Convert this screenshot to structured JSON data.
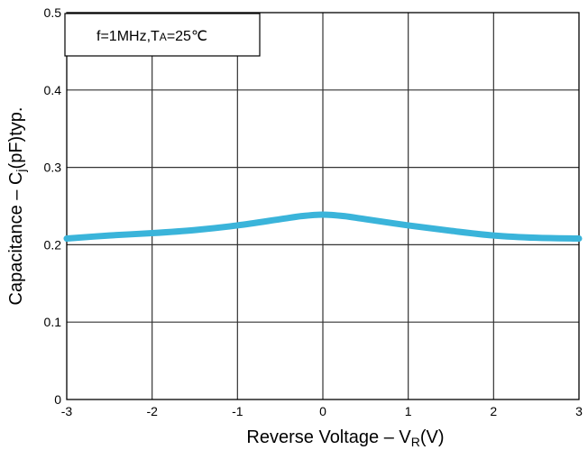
{
  "chart_data": {
    "type": "line",
    "title": "",
    "xlabel": {
      "main": "Reverse Voltage – V",
      "sub": "R",
      "unit": "(V)"
    },
    "ylabel": {
      "main": "Capacitance – C",
      "sub": "j",
      "unit": "(pF)typ."
    },
    "xlim": [
      -3,
      3
    ],
    "ylim": [
      0,
      0.5
    ],
    "xticks": [
      -3,
      -2,
      -1,
      0,
      1,
      2,
      3
    ],
    "yticks": [
      0,
      0.1,
      0.2,
      0.3,
      0.4,
      0.5
    ],
    "xtick_labels": [
      "-3",
      "-2",
      "-1",
      "0",
      "1",
      "2",
      "3"
    ],
    "ytick_labels": [
      "0",
      "0.1",
      "0.2",
      "0.3",
      "0.4",
      "0.5"
    ],
    "grid": true,
    "annotation": "f=1MHz,TA=25℃",
    "annotation_parts": {
      "prefix": "f=1MHz,T",
      "sub": "A",
      "suffix": "=25℃"
    },
    "series": [
      {
        "x": [
          -3,
          -2.5,
          -2,
          -1.5,
          -1,
          -0.5,
          -0.25,
          0,
          0.25,
          0.5,
          1,
          1.5,
          2,
          2.5,
          3
        ],
        "y": [
          0.208,
          0.212,
          0.215,
          0.219,
          0.225,
          0.233,
          0.237,
          0.239,
          0.237,
          0.233,
          0.225,
          0.218,
          0.212,
          0.209,
          0.208
        ],
        "color": "#3AB4DA"
      }
    ]
  }
}
